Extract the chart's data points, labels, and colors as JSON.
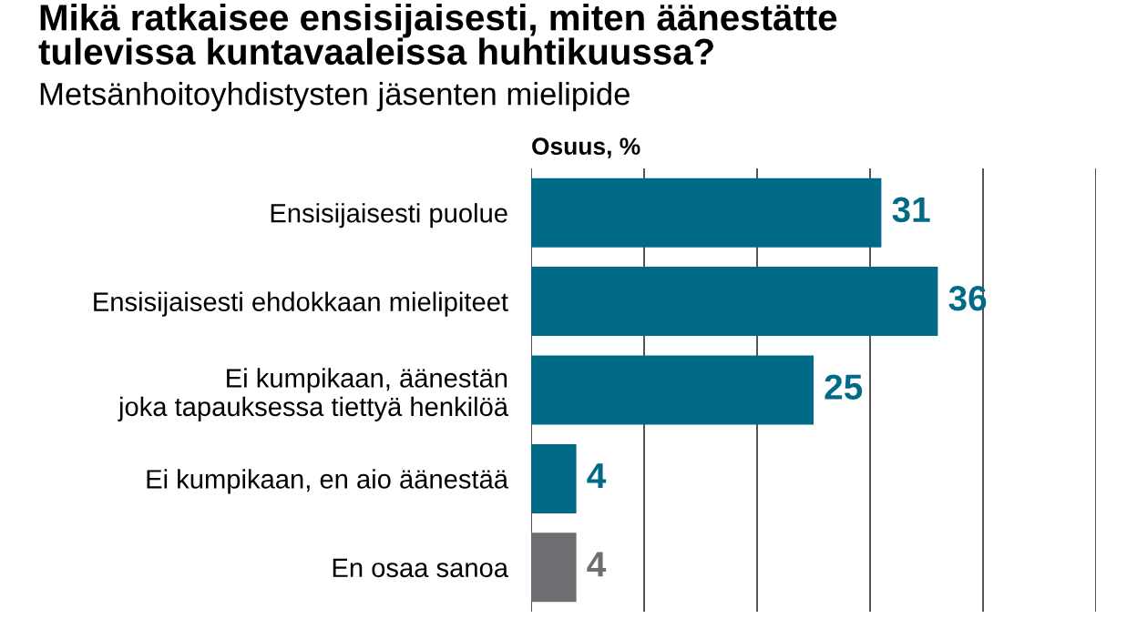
{
  "chart_data": {
    "type": "bar",
    "orientation": "horizontal",
    "title": "Mikä ratkaisee ensisijaisesti, miten äänestätte\ntulevissa kuntavaaleissa huhtikuussa?",
    "subtitle": "Metsänhoitoyhdistysten jäsenten mielipide",
    "xlabel": "Osuus, %",
    "categories": [
      "Ensisijaisesti puolue",
      "Ensisijaisesti ehdokkaan mielipiteet",
      "Ei kumpikaan, äänestän\njoka tapauksessa tiettyä henkilöä",
      "Ei kumpikaan, en aio äänestää",
      "En osaa sanoa"
    ],
    "values": [
      31,
      36,
      25,
      4,
      4
    ],
    "colors": [
      "#006a87",
      "#006a87",
      "#006a87",
      "#006a87",
      "#6d6e71"
    ],
    "data_labels": true,
    "xlim": [
      0,
      50
    ],
    "xticks": [
      {
        "value": 0,
        "label": null
      },
      {
        "value": 10,
        "label": null
      },
      {
        "value": 20,
        "label": null
      },
      {
        "value": 30,
        "label": null
      },
      {
        "value": 40,
        "label": null
      },
      {
        "value": 50,
        "label": null
      }
    ],
    "grid": "x",
    "tick_labels": "y"
  }
}
